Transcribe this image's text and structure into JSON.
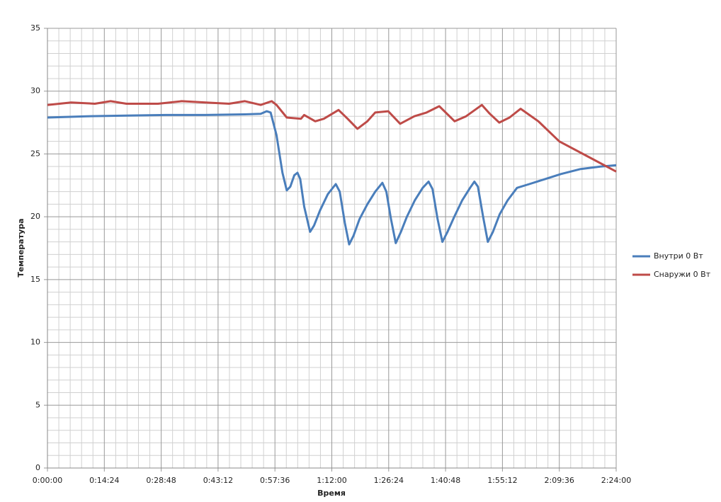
{
  "chart_data": {
    "type": "line",
    "x_label": "Время",
    "y_label": "Температура",
    "xlim": [
      0,
      144
    ],
    "xticks": [
      {
        "value": 0,
        "label": "0:00:00"
      },
      {
        "value": 14.4,
        "label": "0:14:24"
      },
      {
        "value": 28.8,
        "label": "0:28:48"
      },
      {
        "value": 43.2,
        "label": "0:43:12"
      },
      {
        "value": 57.6,
        "label": "0:57:36"
      },
      {
        "value": 72,
        "label": "1:12:00"
      },
      {
        "value": 86.4,
        "label": "1:26:24"
      },
      {
        "value": 100.8,
        "label": "1:40:48"
      },
      {
        "value": 115.2,
        "label": "1:55:12"
      },
      {
        "value": 129.6,
        "label": "2:09:36"
      },
      {
        "value": 144,
        "label": "2:24:00"
      }
    ],
    "ylim": [
      0,
      35
    ],
    "yticks": [
      0,
      5,
      10,
      15,
      20,
      25,
      30,
      35
    ],
    "grid": true,
    "minor_grid": 5,
    "legend": "right",
    "series": [
      {
        "name": "Внутри 0 Вт",
        "color": "#4a7ebb",
        "x": [
          0,
          10,
          20,
          30,
          40,
          50,
          54,
          55.5,
          56.5,
          58,
          59.5,
          60.6,
          61.5,
          62.5,
          63.3,
          64,
          65,
          66.5,
          67.5,
          69,
          71,
          73,
          74,
          75.3,
          76.4,
          77.5,
          79,
          81,
          83,
          84.8,
          85.8,
          87,
          88.2,
          89.5,
          91,
          93,
          95,
          96.5,
          97.5,
          98.8,
          100,
          101.3,
          103,
          105,
          107,
          108.1,
          109,
          110.3,
          111.5,
          112.8,
          114.5,
          116.5,
          118.9,
          122,
          126,
          130,
          135,
          140,
          144
        ],
        "values": [
          27.9,
          28.0,
          28.05,
          28.1,
          28.1,
          28.15,
          28.2,
          28.4,
          28.3,
          26.5,
          23.5,
          22.1,
          22.4,
          23.3,
          23.5,
          23.0,
          20.8,
          18.8,
          19.3,
          20.5,
          21.8,
          22.6,
          22.0,
          19.5,
          17.8,
          18.5,
          19.8,
          21.0,
          22.0,
          22.7,
          22.0,
          19.8,
          17.9,
          18.8,
          20.0,
          21.3,
          22.3,
          22.8,
          22.2,
          19.8,
          18.0,
          18.8,
          20.0,
          21.3,
          22.3,
          22.8,
          22.4,
          20.0,
          18.0,
          18.8,
          20.2,
          21.3,
          22.3,
          22.6,
          23.0,
          23.4,
          23.8,
          24.0,
          24.1
        ]
      },
      {
        "name": "Снаружи 0 Вт",
        "color": "#be4b48",
        "x": [
          0,
          6,
          12,
          16,
          20,
          28,
          34,
          40,
          46,
          50,
          54,
          56.8,
          58,
          60.6,
          64.2,
          65,
          67.8,
          70,
          73.7,
          76,
          78.5,
          81,
          83,
          86.3,
          89.3,
          92.9,
          96,
          99.2,
          103.1,
          106,
          110,
          112,
          114.4,
          117,
          119.8,
          124.3,
          129.6,
          136.8,
          144
        ],
        "values": [
          28.9,
          29.1,
          29.0,
          29.2,
          29.0,
          29.0,
          29.2,
          29.1,
          29.0,
          29.2,
          28.9,
          29.2,
          28.9,
          27.9,
          27.8,
          28.1,
          27.6,
          27.8,
          28.5,
          27.8,
          27.0,
          27.6,
          28.3,
          28.4,
          27.4,
          28.0,
          28.3,
          28.8,
          27.6,
          28.0,
          28.9,
          28.2,
          27.5,
          27.9,
          28.6,
          27.6,
          26.0,
          24.8,
          23.6
        ]
      }
    ]
  }
}
